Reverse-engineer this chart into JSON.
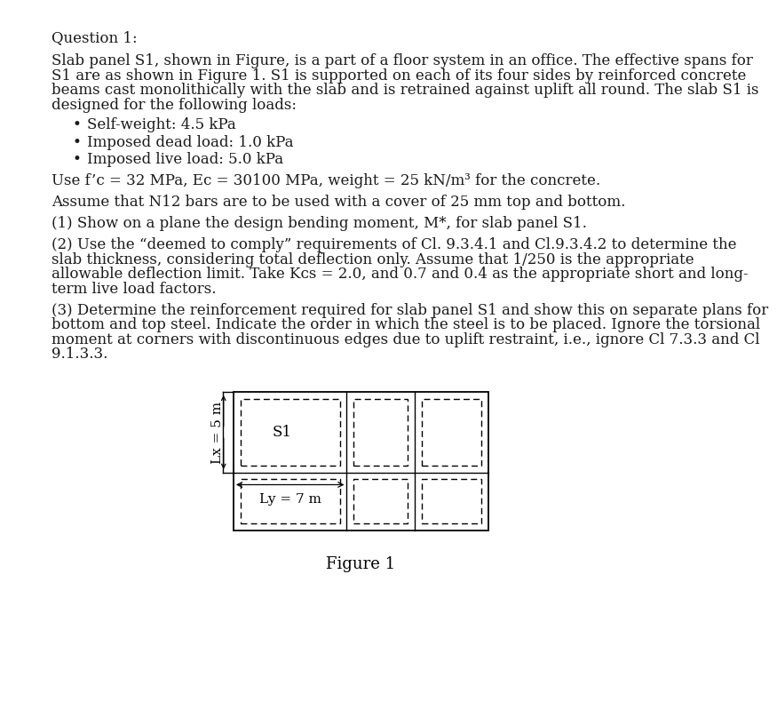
{
  "bg_color": "#ffffff",
  "text_color": "#1a1a1a",
  "title": "Question 1:",
  "paragraph1_lines": [
    "Slab panel S1, shown in Figure, is a part of a floor system in an office. The effective spans for",
    "S1 are as shown in Figure 1. S1 is supported on each of its four sides by reinforced concrete",
    "beams cast monolithically with the slab and is retrained against uplift all round. The slab S1 is",
    "designed for the following loads:"
  ],
  "bullets": [
    "Self-weight: 4.5 kPa",
    "Imposed dead load: 1.0 kPa",
    "Imposed live load: 5.0 kPa"
  ],
  "paragraph3": "Assume that N12 bars are to be used with a cover of 25 mm top and bottom.",
  "paragraph4": "(1) Show on a plane the design bending moment, M*, for slab panel S1.",
  "paragraph5_lines": [
    "(2) Use the “deemed to comply” requirements of Cl. 9.3.4.1 and Cl.9.3.4.2 to determine the",
    "slab thickness, considering total deflection only. Assume that 1/250 is the appropriate",
    "allowable deflection limit. Take Kᴄs = 2.0, and 0.7 and 0.4 as the appropriate short and long-",
    "term live load factors."
  ],
  "paragraph6_lines": [
    "(3) Determine the reinforcement required for slab panel S1 and show this on separate plans for",
    "bottom and top steel. Indicate the order in which the steel is to be placed. Ignore the torsional",
    "moment at corners with discontinuous edges due to uplift restraint, i.e., ignore Cl 7.3.3 and Cl",
    "9.1.3.3."
  ],
  "figure_caption": "Figure 1",
  "lx_label": "Lx = 5 m",
  "ly_label": "Ly = 7 m",
  "s1_label": "S1",
  "font_size_body": 12.0,
  "font_size_fig_caption": 13.0,
  "font_size_diagram": 11.0
}
